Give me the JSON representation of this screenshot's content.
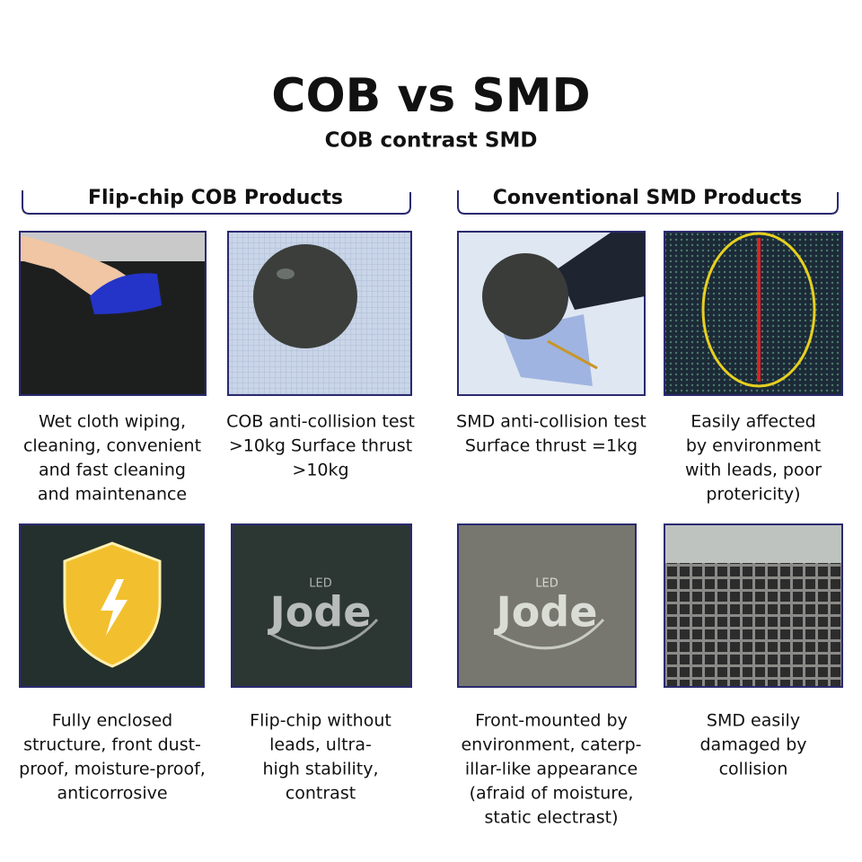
{
  "header": {
    "title": "COB vs SMD",
    "subtitle": "COB contrast SMD"
  },
  "sections": [
    {
      "heading": "Flip-chip COB Products",
      "items": [
        {
          "caption": [
            "Wet cloth wiping,",
            "cleaning, convenient",
            "and fast cleaning",
            "and maintenance"
          ]
        },
        {
          "caption": [
            "COB anti-collision test",
            ">10kg Surface thrust",
            ">10kg"
          ]
        },
        {
          "caption": [
            "Fully enclosed",
            "structure, front dust-",
            "proof, moisture-proof,",
            "anticorrosive"
          ]
        },
        {
          "caption": [
            "Flip-chip without",
            "leads, ultra-",
            "high stability,",
            "contrast"
          ],
          "logo": {
            "small": "LED",
            "main": "Jode"
          }
        }
      ]
    },
    {
      "heading": "Conventional SMD Products",
      "items": [
        {
          "caption": [
            "SMD anti-collision test",
            "Surface thrust =1kg"
          ]
        },
        {
          "caption": [
            "Easily affected",
            "by environment",
            "with leads, poor",
            "protericity)"
          ]
        },
        {
          "caption": [
            "Front-mounted by",
            "environment, caterp-",
            "illar-like appearance",
            "(afraid of moisture,",
            "static electrast)"
          ],
          "logo": {
            "small": "LED",
            "main": "Jode"
          }
        },
        {
          "caption": [
            "SMD easily",
            "damaged by",
            "collision"
          ]
        }
      ]
    }
  ]
}
